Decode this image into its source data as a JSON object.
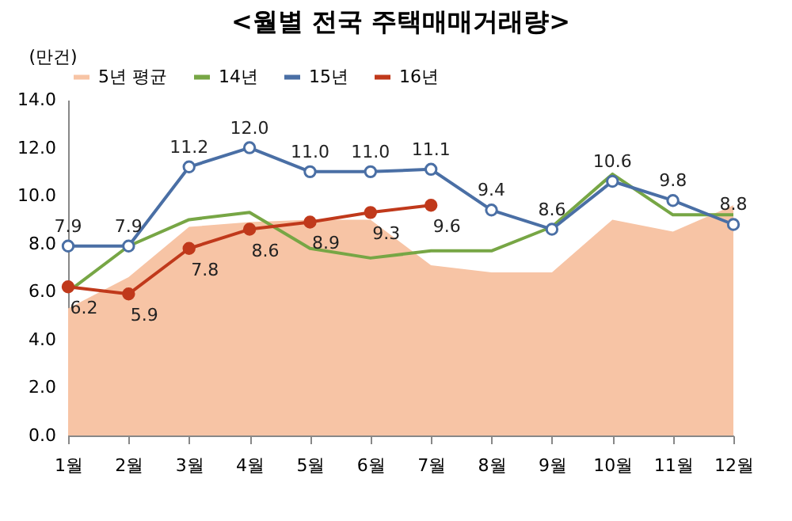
{
  "chart_data": {
    "type": "line",
    "title": "<월별 전국 주택매매거래량>",
    "ylabel": "(만건)",
    "categories": [
      "1월",
      "2월",
      "3월",
      "4월",
      "5월",
      "6월",
      "7월",
      "8월",
      "9월",
      "10월",
      "11월",
      "12월"
    ],
    "ylim": [
      0,
      14
    ],
    "yticks": [
      {
        "value": 0,
        "label": "0.0"
      },
      {
        "value": 2,
        "label": "2.0"
      },
      {
        "value": 4,
        "label": "4.0"
      },
      {
        "value": 6,
        "label": "6.0"
      },
      {
        "value": 8,
        "label": "8.0"
      },
      {
        "value": 10,
        "label": "10.0"
      },
      {
        "value": 12,
        "label": "12.0"
      },
      {
        "value": 14,
        "label": "14.0"
      }
    ],
    "grid": false,
    "legend": "top",
    "series": [
      {
        "name": "5년 평균",
        "type": "area",
        "color": "#f7c4a5",
        "values": [
          5.3,
          6.6,
          8.7,
          8.9,
          9.0,
          9.0,
          7.1,
          6.8,
          6.8,
          9.0,
          8.5,
          9.6
        ]
      },
      {
        "name": "14년",
        "type": "line",
        "color": "#77a645",
        "marker": "none",
        "values": [
          6.0,
          7.9,
          9.0,
          9.3,
          7.8,
          7.4,
          7.7,
          7.7,
          8.7,
          10.9,
          9.2,
          9.2
        ]
      },
      {
        "name": "15년",
        "type": "line",
        "color": "#4a6fa5",
        "marker": "circle",
        "values": [
          7.9,
          7.9,
          11.2,
          12.0,
          11.0,
          11.0,
          11.1,
          9.4,
          8.6,
          10.6,
          9.8,
          8.8
        ],
        "value_labels": [
          "7.9",
          "7.9",
          "11.2",
          "12.0",
          "11.0",
          "11.0",
          "11.1",
          "9.4",
          "8.6",
          "10.6",
          "9.8",
          "8.8"
        ]
      },
      {
        "name": "16년",
        "type": "line",
        "color": "#c0391b",
        "marker": "circle",
        "values": [
          6.2,
          5.9,
          7.8,
          8.6,
          8.9,
          9.3,
          9.6,
          null,
          null,
          null,
          null,
          null
        ],
        "value_labels": [
          "6.2",
          "5.9",
          "7.8",
          "8.6",
          "8.9",
          "9.3",
          "9.6",
          null,
          null,
          null,
          null,
          null
        ]
      }
    ]
  }
}
